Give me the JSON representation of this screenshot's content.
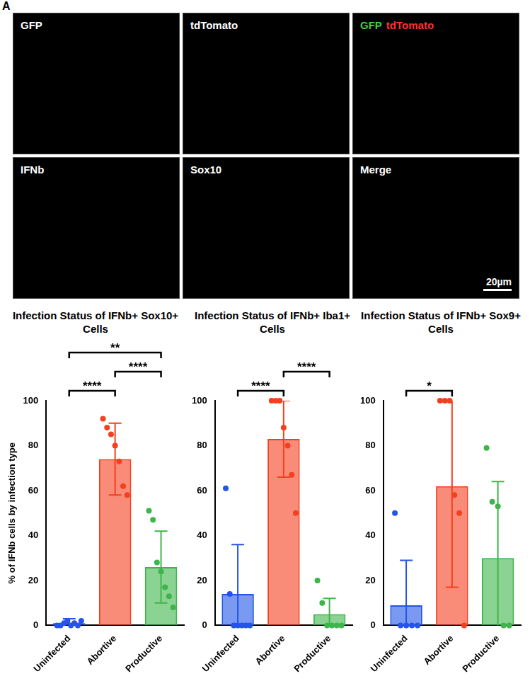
{
  "figure": {
    "letter": "A",
    "image_panels": [
      {
        "label": "GFP"
      },
      {
        "label": "tdTomato"
      },
      {
        "label_parts": [
          {
            "text": "GFP",
            "color": "#3fd13f"
          },
          {
            "text": "tdTomato",
            "color": "#ff3030"
          }
        ]
      },
      {
        "label": "IFNb"
      },
      {
        "label": "Sox10"
      },
      {
        "label": "Merge",
        "scale_bar": "20µm"
      }
    ]
  },
  "chart_data": [
    {
      "type": "bar",
      "title": "Infection Status of IFNb+ Sox10+ Cells",
      "y_label": "% of IFNb cells by infection type",
      "categories": [
        "Uninfected",
        "Abortive",
        "Productive"
      ],
      "values": [
        1,
        74,
        26
      ],
      "errors": [
        2,
        16,
        16
      ],
      "points": [
        [
          0,
          0,
          1,
          2,
          0,
          1,
          0,
          2
        ],
        [
          92,
          88,
          85,
          80,
          73,
          62,
          58
        ],
        [
          51,
          47,
          28,
          24,
          17,
          13,
          8
        ]
      ],
      "colors": [
        "#2255e8",
        "#f5401f",
        "#3db54a"
      ],
      "significance": [
        {
          "from": "Uninfected",
          "to": "Abortive",
          "label": "****"
        },
        {
          "from": "Abortive",
          "to": "Productive",
          "label": "****"
        },
        {
          "from": "Uninfected",
          "to": "Productive",
          "label": "**"
        }
      ],
      "ylim": [
        0,
        100
      ],
      "yticks": [
        0,
        20,
        40,
        60,
        80,
        100
      ],
      "grid": false
    },
    {
      "type": "bar",
      "title": "Infection Status of IFNb+ Iba1+ Cells",
      "categories": [
        "Uninfected",
        "Abortive",
        "Productive"
      ],
      "values": [
        14,
        83,
        5
      ],
      "errors": [
        22,
        17,
        7
      ],
      "points": [
        [
          61,
          14,
          0,
          0,
          0,
          0,
          0
        ],
        [
          100,
          100,
          100,
          88,
          80,
          67,
          50
        ],
        [
          20,
          10,
          0,
          0,
          0,
          0
        ]
      ],
      "colors": [
        "#2255e8",
        "#f5401f",
        "#3db54a"
      ],
      "significance": [
        {
          "from": "Uninfected",
          "to": "Abortive",
          "label": "****"
        },
        {
          "from": "Abortive",
          "to": "Productive",
          "label": "****"
        }
      ],
      "ylim": [
        0,
        100
      ],
      "yticks": [
        0,
        20,
        40,
        60,
        80,
        100
      ],
      "grid": false
    },
    {
      "type": "bar",
      "title": "Infection Status of IFNb+ Sox9+ Cells",
      "categories": [
        "Uninfected",
        "Abortive",
        "Productive"
      ],
      "values": [
        9,
        62,
        30
      ],
      "errors": [
        20,
        45,
        34
      ],
      "points": [
        [
          50,
          0,
          0,
          0,
          0
        ],
        [
          100,
          100,
          100,
          58,
          50,
          0
        ],
        [
          79,
          55,
          53,
          0,
          0
        ]
      ],
      "colors": [
        "#2255e8",
        "#f5401f",
        "#3db54a"
      ],
      "significance": [
        {
          "from": "Uninfected",
          "to": "Abortive",
          "label": "*"
        }
      ],
      "ylim": [
        0,
        100
      ],
      "yticks": [
        0,
        20,
        40,
        60,
        80,
        100
      ],
      "grid": false
    }
  ]
}
